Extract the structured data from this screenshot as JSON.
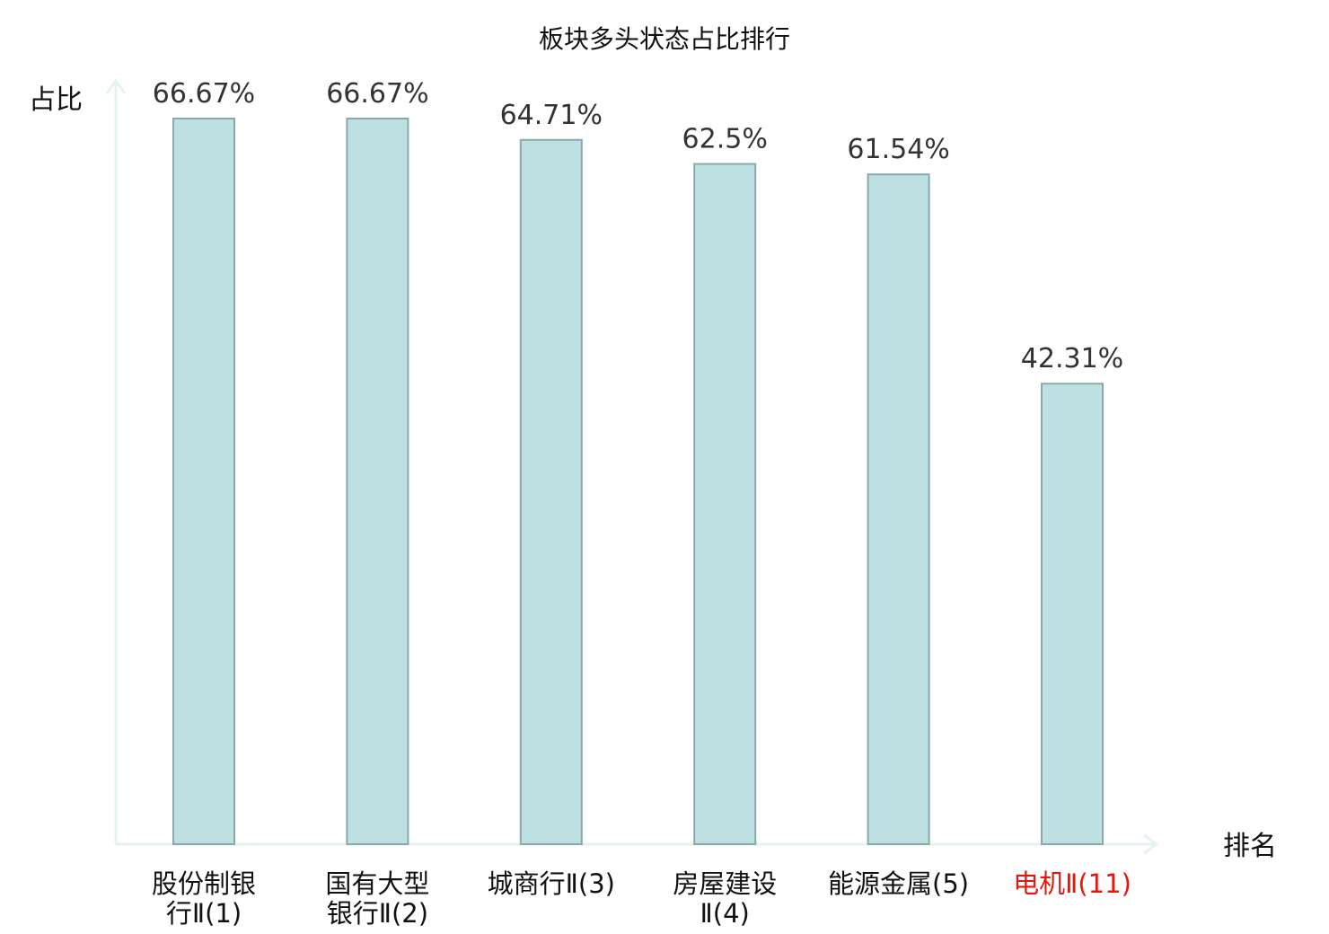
{
  "chart_data": {
    "type": "bar",
    "title": "板块多头状态占比排行",
    "ylabel": "占比",
    "xlabel": "排名",
    "categories": [
      [
        "股份制银",
        "行Ⅱ(1)"
      ],
      [
        "国有大型",
        "银行Ⅱ(2)"
      ],
      [
        "城商行Ⅱ(3)"
      ],
      [
        "房屋建设",
        "Ⅱ(4)"
      ],
      [
        "能源金属(5)"
      ],
      [
        "电机Ⅱ(11)"
      ]
    ],
    "values": [
      66.67,
      66.67,
      64.71,
      62.5,
      61.54,
      42.31
    ],
    "value_labels": [
      "66.67%",
      "66.67%",
      "64.71%",
      "62.5%",
      "61.54%",
      "42.31%"
    ],
    "highlight_index": 5,
    "ylim": [
      0,
      70
    ],
    "grid": false,
    "colors": {
      "bar_fill": "#bde0e3",
      "bar_stroke": "#8aa9ab",
      "axis": "#e3f3f0",
      "highlight_text": "#e8160c"
    }
  }
}
